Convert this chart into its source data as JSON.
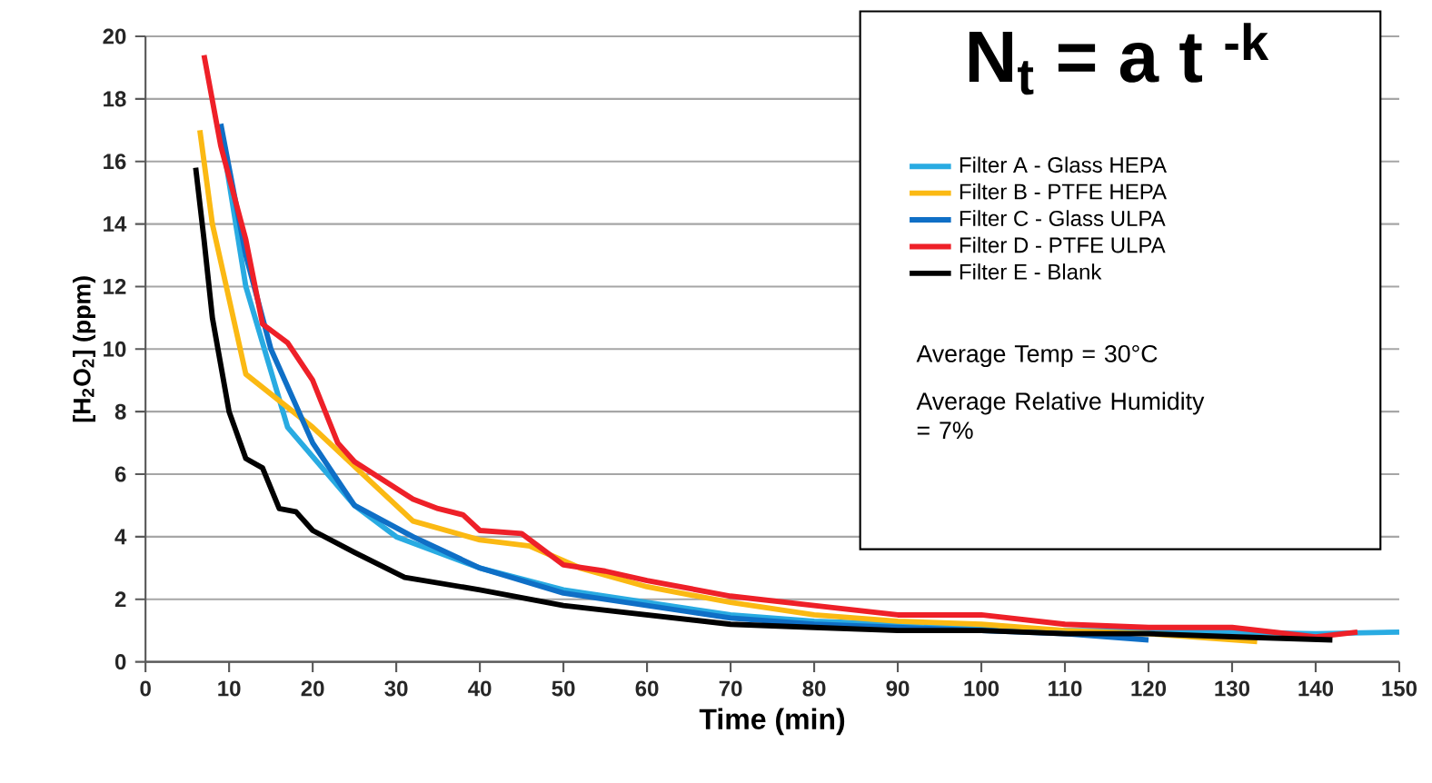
{
  "chart_data": {
    "type": "line",
    "xlabel": "Time (min)",
    "ylabel": "[H$_{2}$O$_{2}$] (ppm)",
    "xlim": [
      0,
      150
    ],
    "xticks": [
      0,
      10,
      20,
      30,
      40,
      50,
      60,
      70,
      80,
      90,
      100,
      110,
      120,
      130,
      140,
      150
    ],
    "ylim": [
      0,
      20
    ],
    "yticks": [
      0,
      2,
      4,
      6,
      8,
      10,
      12,
      14,
      16,
      18,
      20
    ],
    "grid": "y",
    "legend": "top right",
    "marker": "none",
    "line_style": "solid",
    "annotations": [
      "N$_{t}$ = a t $^{-k}$",
      "Average Temp = 30°C",
      "Average Relative Humidity = 7%"
    ],
    "series": [
      {
        "name": "Filter A - Glass HEPA",
        "color": "#29abe2",
        "x": [
          9,
          12,
          17,
          25,
          30,
          40,
          50,
          60,
          70,
          80,
          90,
          100,
          110,
          120,
          130,
          140,
          150
        ],
        "values": [
          17,
          12,
          7.5,
          5,
          4,
          3,
          2.3,
          1.9,
          1.5,
          1.3,
          1.2,
          1.1,
          1,
          1,
          0.95,
          0.9,
          0.95
        ]
      },
      {
        "name": "Filter B - PTFE HEPA",
        "color": "#fbb913",
        "x": [
          6.5,
          8,
          12,
          20,
          26,
          32,
          40,
          46,
          52,
          60,
          70,
          80,
          90,
          100,
          110,
          120,
          133
        ],
        "values": [
          17,
          14,
          9.2,
          7.5,
          6,
          4.5,
          3.9,
          3.7,
          3,
          2.4,
          1.9,
          1.5,
          1.3,
          1.2,
          1,
          0.9,
          0.65
        ]
      },
      {
        "name": "Filter C - Glass ULPA",
        "color": "#0f6fc6",
        "x": [
          9,
          12,
          15,
          20,
          25,
          32,
          40,
          50,
          60,
          70,
          80,
          90,
          100,
          110,
          120
        ],
        "values": [
          17.2,
          13,
          10,
          7,
          5,
          4,
          3,
          2.2,
          1.8,
          1.4,
          1.2,
          1.1,
          1,
          0.9,
          0.7
        ]
      },
      {
        "name": "Filter D - PTFE ULPA",
        "color": "#ee2028",
        "x": [
          7,
          9,
          12,
          14,
          17,
          20,
          23,
          25,
          32,
          35,
          38,
          40,
          45,
          50,
          55,
          60,
          70,
          80,
          90,
          100,
          110,
          120,
          130,
          140,
          145
        ],
        "values": [
          19.4,
          16.5,
          13.5,
          10.8,
          10.2,
          9,
          7,
          6.4,
          5.2,
          4.9,
          4.7,
          4.2,
          4.1,
          3.1,
          2.9,
          2.6,
          2.1,
          1.8,
          1.5,
          1.5,
          1.2,
          1.1,
          1.1,
          0.8,
          0.95
        ]
      },
      {
        "name": "Filter E - Blank",
        "color": "#000000",
        "x": [
          6,
          7,
          8,
          10,
          12,
          14,
          16,
          18,
          20,
          25,
          31,
          40,
          50,
          60,
          70,
          80,
          90,
          100,
          110,
          120,
          130,
          142
        ],
        "values": [
          15.8,
          13.5,
          11,
          8,
          6.5,
          6.2,
          4.9,
          4.8,
          4.2,
          3.5,
          2.7,
          2.3,
          1.8,
          1.5,
          1.2,
          1.1,
          1.0,
          1.0,
          0.9,
          0.9,
          0.8,
          0.7
        ]
      }
    ]
  }
}
